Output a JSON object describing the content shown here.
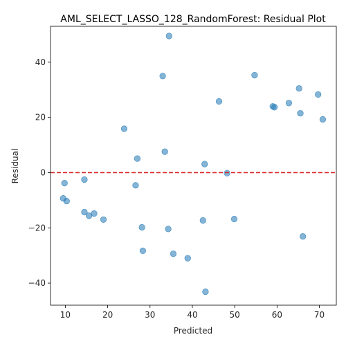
{
  "chart_data": {
    "type": "scatter",
    "title": "AML_SELECT_LASSO_128_RandomForest: Residual Plot",
    "xlabel": "Predicted",
    "ylabel": "Residual",
    "xlim": [
      6.5,
      74
    ],
    "ylim": [
      -48,
      53
    ],
    "xticks": [
      10,
      20,
      30,
      40,
      50,
      60,
      70
    ],
    "yticks": [
      -40,
      -20,
      0,
      20,
      40
    ],
    "reference_line": {
      "y": 0,
      "style": "dashed",
      "color": "#d62728"
    },
    "marker_color": "#1f77b4",
    "grid": false,
    "points": [
      {
        "x": 34.5,
        "y": 49.5
      },
      {
        "x": 33.0,
        "y": 35.0
      },
      {
        "x": 54.7,
        "y": 35.3
      },
      {
        "x": 65.2,
        "y": 30.5
      },
      {
        "x": 69.7,
        "y": 28.3
      },
      {
        "x": 46.3,
        "y": 25.8
      },
      {
        "x": 62.8,
        "y": 25.2
      },
      {
        "x": 59.0,
        "y": 24.0
      },
      {
        "x": 59.4,
        "y": 23.7
      },
      {
        "x": 65.5,
        "y": 21.5
      },
      {
        "x": 70.8,
        "y": 19.3
      },
      {
        "x": 23.9,
        "y": 15.9
      },
      {
        "x": 33.5,
        "y": 7.6
      },
      {
        "x": 27.0,
        "y": 5.1
      },
      {
        "x": 42.9,
        "y": 3.1
      },
      {
        "x": 48.2,
        "y": -0.2
      },
      {
        "x": 14.5,
        "y": -2.5
      },
      {
        "x": 9.8,
        "y": -3.8
      },
      {
        "x": 26.6,
        "y": -4.6
      },
      {
        "x": 9.5,
        "y": -9.3
      },
      {
        "x": 10.3,
        "y": -10.3
      },
      {
        "x": 14.5,
        "y": -14.3
      },
      {
        "x": 16.8,
        "y": -14.8
      },
      {
        "x": 15.6,
        "y": -15.6
      },
      {
        "x": 19.0,
        "y": -17.0
      },
      {
        "x": 49.9,
        "y": -16.8
      },
      {
        "x": 42.5,
        "y": -17.3
      },
      {
        "x": 28.1,
        "y": -19.8
      },
      {
        "x": 34.3,
        "y": -20.4
      },
      {
        "x": 66.1,
        "y": -23.1
      },
      {
        "x": 28.3,
        "y": -28.3
      },
      {
        "x": 35.5,
        "y": -29.4
      },
      {
        "x": 38.9,
        "y": -31.0
      },
      {
        "x": 43.1,
        "y": -43.1
      }
    ]
  }
}
